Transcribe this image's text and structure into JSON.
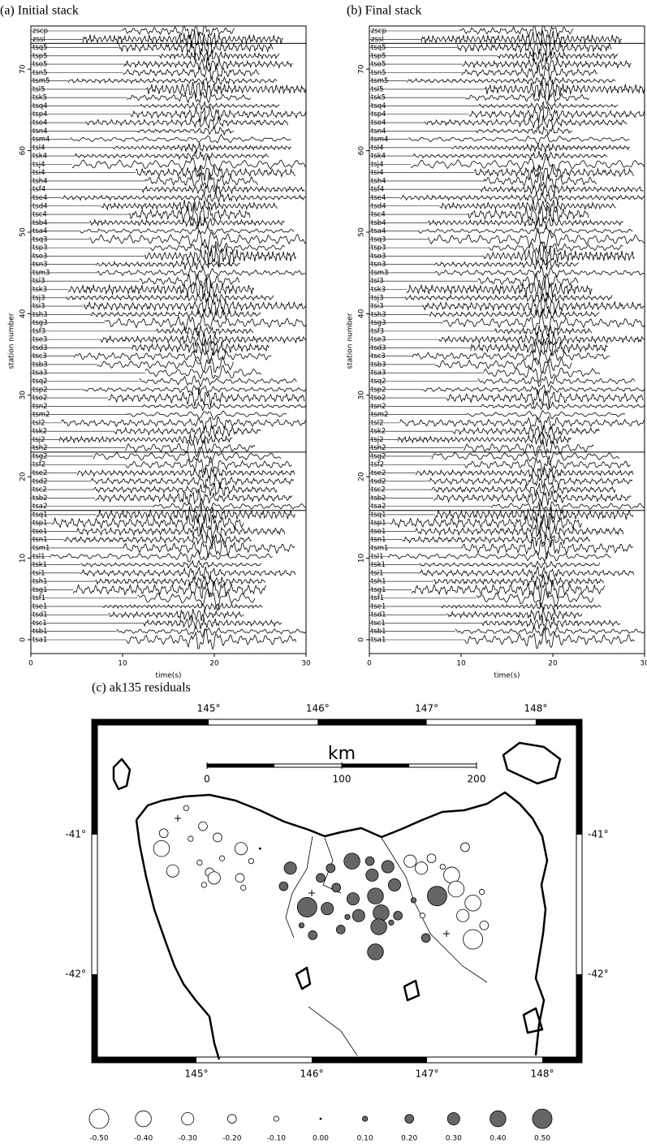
{
  "panels": [
    {
      "title": "(a) Initial stack"
    },
    {
      "title": "(b) Final stack"
    }
  ],
  "seismic": {
    "ylabel": "station number",
    "xlabel": "time(s)",
    "xlim": [
      0,
      30
    ],
    "ylim": [
      -1.7,
      75.3
    ],
    "xticks": [
      0,
      10,
      20,
      30
    ],
    "yticks": [
      0,
      10,
      20,
      30,
      40,
      50,
      60,
      70
    ],
    "stations": [
      "zscp",
      "zssl",
      "tsq5",
      "tsp5",
      "tso5",
      "tsn5",
      "tsm5",
      "tsl5",
      "tsk5",
      "tsq4",
      "tsp4",
      "tso4",
      "tsn4",
      "tsm4",
      "tsl4",
      "tsk4",
      "tsj4",
      "tsi4",
      "tsh4",
      "tsf4",
      "tse4",
      "tsd4",
      "tsc4",
      "tsb4",
      "tsa4",
      "tsq3",
      "tsp3",
      "tso3",
      "tsn3",
      "tsm3",
      "tsl3",
      "tsk3",
      "tsj3",
      "tsi3",
      "tsh3",
      "tsg3",
      "tsf3",
      "tse3",
      "tsd3",
      "tsc3",
      "tsb3",
      "tsa3",
      "tsq2",
      "tsp2",
      "tso2",
      "tsn2",
      "tsm2",
      "tsl2",
      "tsk2",
      "tsj2",
      "tsh2",
      "tsg2",
      "tsf2",
      "tse2",
      "tsd2",
      "tsc2",
      "tsb2",
      "tsa2",
      "tsq1",
      "tsp1",
      "tso1",
      "tsn1",
      "tsm1",
      "tsl1",
      "tsk1",
      "tsi1",
      "tsh1",
      "tsg1",
      "tsf1",
      "tse1",
      "tsd1",
      "tsc1",
      "tsb1",
      "tsa1"
    ]
  },
  "map": {
    "title": "(c) ak135 residuals",
    "lon_ticks": [
      {
        "value": 145,
        "label": "145°"
      },
      {
        "value": 146,
        "label": "146°"
      },
      {
        "value": 147,
        "label": "147°"
      },
      {
        "value": 148,
        "label": "148°"
      }
    ],
    "lat_ticks": [
      {
        "value": -41,
        "label": "-41°"
      },
      {
        "value": -42,
        "label": "-42°"
      }
    ],
    "scale": {
      "unit": "km",
      "ticks": [
        0,
        100,
        200
      ]
    },
    "stations": [
      [
        144.85,
        -40.81,
        -0.1
      ],
      [
        144.63,
        -41.1,
        -0.4
      ],
      [
        144.73,
        -41.26,
        -0.3
      ],
      [
        144.65,
        -40.99,
        -0.2
      ],
      [
        144.89,
        -41.03,
        -0.1
      ],
      [
        145.0,
        -40.94,
        -0.2
      ],
      [
        145.13,
        -41.02,
        -0.2
      ],
      [
        145.34,
        -41.1,
        -0.3
      ],
      [
        145.17,
        -41.17,
        -0.1
      ],
      [
        144.97,
        -41.2,
        -0.1
      ],
      [
        145.06,
        -41.27,
        -0.2
      ],
      [
        145.1,
        -41.31,
        -0.3
      ],
      [
        145.01,
        -41.36,
        -0.1
      ],
      [
        145.33,
        -41.31,
        -0.2
      ],
      [
        145.43,
        -41.19,
        -0.1
      ],
      [
        145.51,
        -41.1,
        0.0
      ],
      [
        145.36,
        -41.38,
        -0.1
      ],
      [
        145.78,
        -41.24,
        0.3
      ],
      [
        145.72,
        -41.37,
        0.2
      ],
      [
        146.05,
        -41.31,
        0.2
      ],
      [
        146.14,
        -41.24,
        0.2
      ],
      [
        146.33,
        -41.19,
        0.4
      ],
      [
        146.19,
        -41.38,
        0.2
      ],
      [
        145.93,
        -41.52,
        0.5
      ],
      [
        146.11,
        -41.53,
        0.3
      ],
      [
        146.34,
        -41.46,
        0.3
      ],
      [
        146.54,
        -41.44,
        0.4
      ],
      [
        146.51,
        -41.29,
        0.3
      ],
      [
        146.49,
        -41.19,
        0.2
      ],
      [
        146.65,
        -41.23,
        0.3
      ],
      [
        146.71,
        -41.36,
        0.3
      ],
      [
        146.29,
        -41.59,
        0.1
      ],
      [
        146.39,
        -41.58,
        0.3
      ],
      [
        146.59,
        -41.56,
        0.4
      ],
      [
        146.57,
        -41.66,
        0.4
      ],
      [
        145.88,
        -41.65,
        0.1
      ],
      [
        145.98,
        -41.72,
        0.2
      ],
      [
        146.23,
        -41.68,
        0.2
      ],
      [
        146.74,
        -41.58,
        0.2
      ],
      [
        146.68,
        -41.63,
        0.1
      ],
      [
        146.88,
        -41.47,
        0.1
      ],
      [
        147.09,
        -41.44,
        0.5
      ],
      [
        146.99,
        -41.74,
        0.2
      ],
      [
        146.54,
        -41.84,
        0.4
      ],
      [
        146.85,
        -41.19,
        -0.3
      ],
      [
        146.95,
        -41.24,
        -0.3
      ],
      [
        147.04,
        -41.17,
        -0.2
      ],
      [
        147.14,
        -41.23,
        -0.1
      ],
      [
        147.22,
        -41.29,
        -0.4
      ],
      [
        147.34,
        -41.09,
        -0.2
      ],
      [
        147.26,
        -41.39,
        -0.4
      ],
      [
        147.41,
        -41.49,
        -0.4
      ],
      [
        147.32,
        -41.58,
        -0.3
      ],
      [
        147.49,
        -41.41,
        -0.1
      ],
      [
        147.41,
        -41.75,
        -0.5
      ],
      [
        147.51,
        -41.65,
        -0.2
      ],
      [
        146.96,
        -41.58,
        -0.1
      ]
    ],
    "legend": [
      {
        "value": -0.5,
        "label": "-0.50"
      },
      {
        "value": -0.4,
        "label": "-0.40"
      },
      {
        "value": -0.3,
        "label": "-0.30"
      },
      {
        "value": -0.2,
        "label": "-0.20"
      },
      {
        "value": -0.1,
        "label": "-0.10"
      },
      {
        "value": 0,
        "label": "0.00"
      },
      {
        "value": 0.1,
        "label": "0.10"
      },
      {
        "value": 0.2,
        "label": "0.20"
      },
      {
        "value": 0.3,
        "label": "0.30"
      },
      {
        "value": 0.4,
        "label": "0.40"
      },
      {
        "value": 0.5,
        "label": "0.50"
      }
    ]
  }
}
